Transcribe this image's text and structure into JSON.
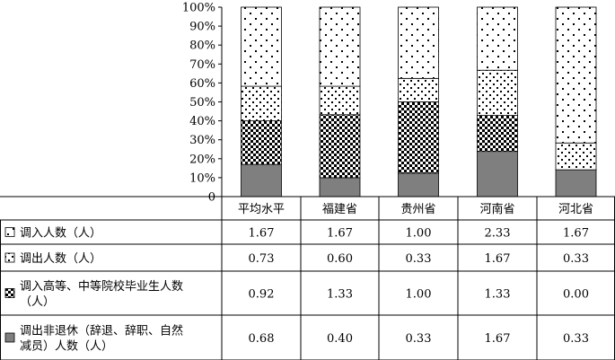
{
  "chart_data": {
    "type": "bar",
    "stacked": "100%",
    "categories": [
      "平均水平",
      "福建省",
      "贵州省",
      "河南省",
      "河北省"
    ],
    "series": [
      {
        "name": "调出非退休（辞退、辞职、自然减员）人数（人）",
        "name_lines": [
          "调出非退休（辞退、辞职、自然",
          "减员）人数（人）"
        ],
        "pattern": "solid-gray",
        "values": [
          0.68,
          0.4,
          0.33,
          1.67,
          0.33
        ],
        "value_labels": [
          "0.68",
          "0.40",
          "0.33",
          "1.67",
          "0.33"
        ]
      },
      {
        "name": "调入高等、中等院校毕业生人数（人）",
        "name_lines": [
          "调入高等、中等院校毕业生人数",
          "（人）"
        ],
        "pattern": "checker",
        "values": [
          0.92,
          1.33,
          1.0,
          1.33,
          0.0
        ],
        "value_labels": [
          "0.92",
          "1.33",
          "1.00",
          "1.33",
          "0.00"
        ]
      },
      {
        "name": "调出人数（人）",
        "name_lines": [
          "调出人数（人）"
        ],
        "pattern": "dense-dots",
        "values": [
          0.73,
          0.6,
          0.33,
          1.67,
          0.33
        ],
        "value_labels": [
          "0.73",
          "0.60",
          "0.33",
          "1.67",
          "0.33"
        ]
      },
      {
        "name": "调入人数（人）",
        "name_lines": [
          "调入人数（人）"
        ],
        "pattern": "sparse-dots",
        "values": [
          1.67,
          1.67,
          1.0,
          2.33,
          1.67
        ],
        "value_labels": [
          "1.67",
          "1.67",
          "1.00",
          "2.33",
          "1.67"
        ]
      }
    ],
    "table_row_order": [
      "调入人数（人）",
      "调出人数（人）",
      "调入高等、中等院校毕业生人数（人）",
      "调出非退休（辞退、辞职、自然减员）人数（人）"
    ],
    "y_ticks": [
      "0",
      "10%",
      "20%",
      "30%",
      "40%",
      "50%",
      "60%",
      "70%",
      "80%",
      "90%",
      "100%"
    ],
    "ylim": [
      0,
      100
    ],
    "grid": false,
    "legend": "data-table-left",
    "colors": {
      "solid-gray": "#7f7f7f",
      "outline": "#000000",
      "background": "#ffffff"
    }
  }
}
